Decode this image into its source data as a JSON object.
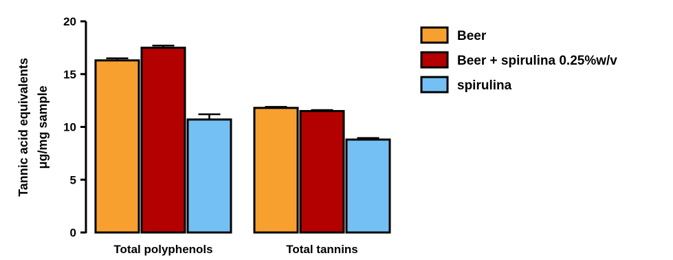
{
  "chart_data": {
    "type": "bar",
    "categories": [
      "Total polyphenols",
      "Total tannins"
    ],
    "series": [
      {
        "name": "Beer",
        "values": [
          16.3,
          11.8
        ],
        "errors": [
          0.2,
          0.1
        ],
        "color": "#f7a030"
      },
      {
        "name": "Beer + spirulina 0.25%w/v",
        "values": [
          17.5,
          11.5
        ],
        "errors": [
          0.2,
          0.1
        ],
        "color": "#b30000"
      },
      {
        "name": "spirulina",
        "values": [
          10.7,
          8.8
        ],
        "errors": [
          0.5,
          0.15
        ],
        "color": "#74c0f4"
      }
    ],
    "ylabel_line1": "Tannic acid equivalents",
    "ylabel_line2": "μg/mg sample",
    "xlabel": "",
    "title": "",
    "ylim": [
      0,
      20
    ],
    "yticks": [
      0,
      5,
      10,
      15,
      20
    ],
    "grid": false,
    "legend_position": "top-right"
  }
}
